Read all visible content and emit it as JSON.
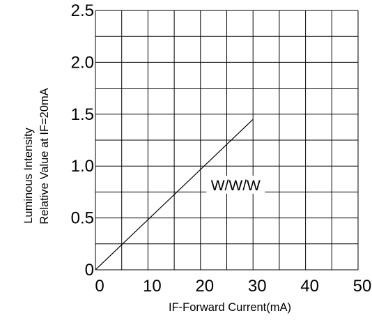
{
  "chart_data": {
    "type": "line",
    "title": "",
    "xlabel": "IF-Forward Current(mA)",
    "ylabel_lines": [
      "Relative Value at IF=20mA",
      "Luminous Intensity"
    ],
    "x_ticks": [
      "0",
      "10",
      "20",
      "30",
      "40",
      "50"
    ],
    "y_ticks": [
      "0",
      "0.5",
      "1.0",
      "1.5",
      "2.0",
      "2.5"
    ],
    "xlim": [
      0,
      50
    ],
    "ylim": [
      0,
      2.5
    ],
    "grid": true,
    "x_minor_divisions": 2,
    "y_minor_divisions": 2,
    "series": [
      {
        "name": "",
        "x": [
          0,
          30
        ],
        "y": [
          0,
          1.45
        ]
      }
    ],
    "annotations": [
      {
        "text": "W/W/W",
        "x": 26.7,
        "y": 0.82
      }
    ]
  },
  "colors": {
    "line": "#000000",
    "grid": "#000000",
    "background": "#ffffff"
  }
}
